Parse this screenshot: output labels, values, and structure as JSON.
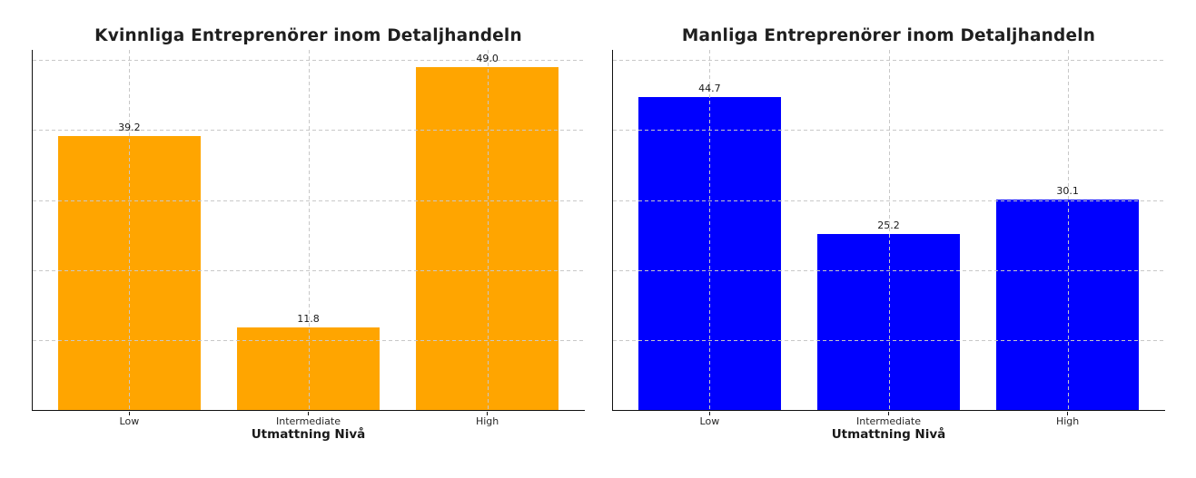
{
  "figure": {
    "background": "#ffffff"
  },
  "colors": {
    "female_bars": "#FFA500",
    "male_bars": "#0000FF",
    "gridline": "#c8c8c8",
    "spine": "#111111",
    "title_text": "#1f1f1f",
    "tick_label_text": "#262626",
    "value_label_text": "#1a1a1a"
  },
  "chart_data": [
    {
      "type": "bar",
      "title": "Kvinnliga Entreprenörer inom Detaljhandeln",
      "xlabel": "Utmattning Nivå",
      "ylabel": "",
      "categories": [
        "Low",
        "Intermediate",
        "High"
      ],
      "values": [
        39.2,
        11.8,
        49.0
      ],
      "value_labels": [
        "39.2",
        "11.8",
        "49.0"
      ],
      "bar_color": "#FFA500",
      "ylim": [
        0,
        51.45
      ],
      "yticks": [
        10,
        20,
        30,
        40,
        50
      ],
      "y_tick_labels_visible": false,
      "grid": {
        "visible": true,
        "style": "dashed",
        "color": "#c8c8c8",
        "axes": "both",
        "above_bars": true
      },
      "legend": null
    },
    {
      "type": "bar",
      "title": "Manliga Entreprenörer inom Detaljhandeln",
      "xlabel": "Utmattning Nivå",
      "ylabel": "",
      "categories": [
        "Low",
        "Intermediate",
        "High"
      ],
      "values": [
        44.7,
        25.2,
        30.1
      ],
      "value_labels": [
        "44.7",
        "25.2",
        "30.1"
      ],
      "bar_color": "#0000FF",
      "ylim": [
        0,
        51.45
      ],
      "yticks": [
        10,
        20,
        30,
        40,
        50
      ],
      "y_tick_labels_visible": false,
      "grid": {
        "visible": true,
        "style": "dashed",
        "color": "#c8c8c8",
        "axes": "both",
        "above_bars": true
      },
      "legend": null
    }
  ]
}
